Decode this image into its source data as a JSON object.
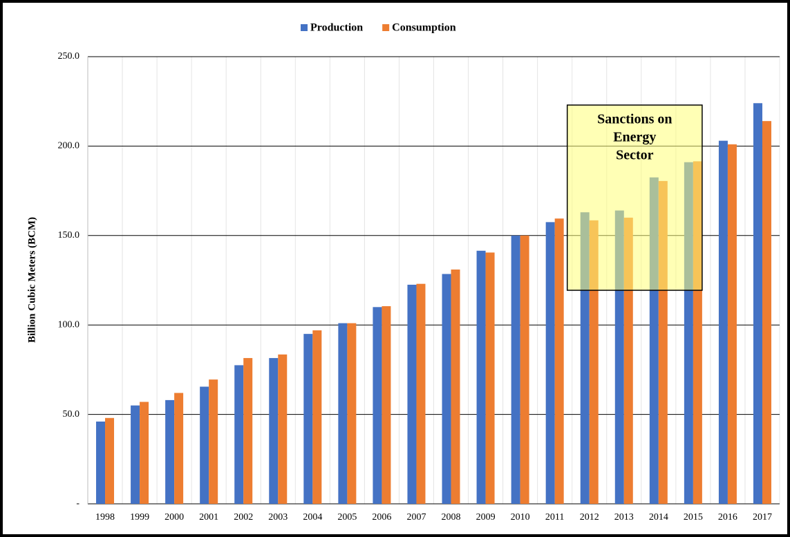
{
  "chart_data": {
    "type": "bar",
    "y_label": "Billion Cubic Meters (BCM)",
    "categories": [
      "1998",
      "1999",
      "2000",
      "2001",
      "2002",
      "2003",
      "2004",
      "2005",
      "2006",
      "2007",
      "2008",
      "2009",
      "2010",
      "2011",
      "2012",
      "2013",
      "2014",
      "2015",
      "2016",
      "2017"
    ],
    "series": [
      {
        "name": "Production",
        "color": "#4472c4",
        "values": [
          46,
          55,
          58,
          65.5,
          77.5,
          81.5,
          95,
          101,
          110,
          122.5,
          128.5,
          141.5,
          150,
          157.5,
          163,
          164,
          182.5,
          191,
          203,
          224
        ]
      },
      {
        "name": "Consumption",
        "color": "#ed7d31",
        "values": [
          48,
          57,
          62,
          69.5,
          81.5,
          83.5,
          97,
          101,
          110.5,
          123,
          131,
          140.5,
          150,
          159.5,
          158.5,
          160,
          180.5,
          191.5,
          201,
          214
        ]
      }
    ],
    "ylim": [
      0,
      250
    ],
    "yticks": [
      {
        "value": 0,
        "label": "-"
      },
      {
        "value": 50,
        "label": "50.0"
      },
      {
        "value": 100,
        "label": "100.0"
      },
      {
        "value": 150,
        "label": "150.0"
      },
      {
        "value": 200,
        "label": "200.0"
      },
      {
        "value": 250,
        "label": "250.0"
      }
    ],
    "grid": true,
    "legend": "top",
    "annotation": {
      "lines": [
        "Sanctions on",
        "Energy",
        "Sector"
      ]
    }
  }
}
